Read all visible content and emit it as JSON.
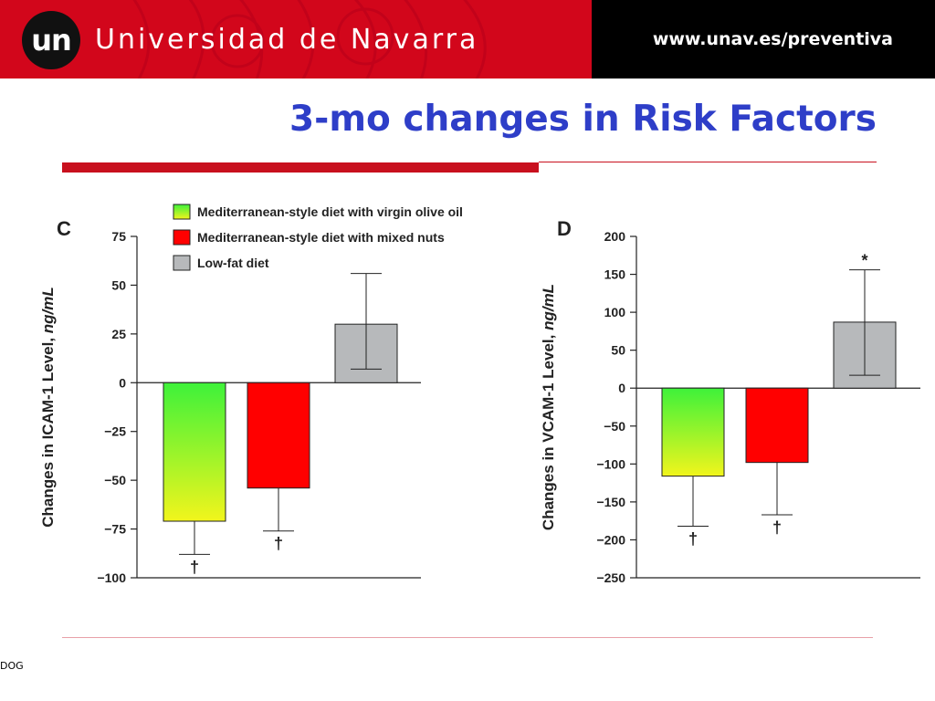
{
  "header": {
    "logo_text": "un",
    "university": "Universidad de Navarra",
    "url": "www.unav.es/preventiva"
  },
  "title": "3-mo changes in Risk Factors",
  "footer": "DOG",
  "legend": [
    {
      "label": "Mediterranean-style diet with virgin olive oil"
    },
    {
      "label": "Mediterranean-style diet with mixed nuts"
    },
    {
      "label": "Low-fat diet"
    }
  ],
  "colors": {
    "olive_top": "#3ef23a",
    "olive_bottom": "#f2f51c",
    "nuts": "#ff0000",
    "lowfat": "#b7b9bb",
    "header_red": "#d2061b",
    "title_blue": "#2e3ec8"
  },
  "chart_data": [
    {
      "type": "bar",
      "panel": "C",
      "ylabel_main": "Changes in ICAM-1 Level, ",
      "ylabel_unit": "ng/mL",
      "ylim": [
        -100,
        75
      ],
      "yticks": [
        75,
        50,
        25,
        0,
        -25,
        -50,
        -75,
        -100
      ],
      "ytick_labels": [
        "75",
        "50",
        "25",
        "0",
        "−25",
        "−50",
        "−75",
        "−100"
      ],
      "values": [
        -71,
        -54,
        30
      ],
      "error_ends": [
        -88,
        -76,
        56
      ],
      "error_low": [
        null,
        null,
        7
      ],
      "annotations": [
        "†",
        "†",
        ""
      ]
    },
    {
      "type": "bar",
      "panel": "D",
      "ylabel_main": "Changes in VCAM-1 Level, ",
      "ylabel_unit": "ng/mL",
      "ylim": [
        -250,
        200
      ],
      "yticks": [
        200,
        150,
        100,
        50,
        0,
        -50,
        -100,
        -150,
        -200,
        -250
      ],
      "ytick_labels": [
        "200",
        "150",
        "100",
        "50",
        "0",
        "−50",
        "−100",
        "−150",
        "−200",
        "−250"
      ],
      "values": [
        -116,
        -98,
        87
      ],
      "error_ends": [
        -182,
        -167,
        156
      ],
      "error_low": [
        null,
        null,
        17
      ],
      "annotations": [
        "†",
        "†",
        "*"
      ]
    }
  ]
}
